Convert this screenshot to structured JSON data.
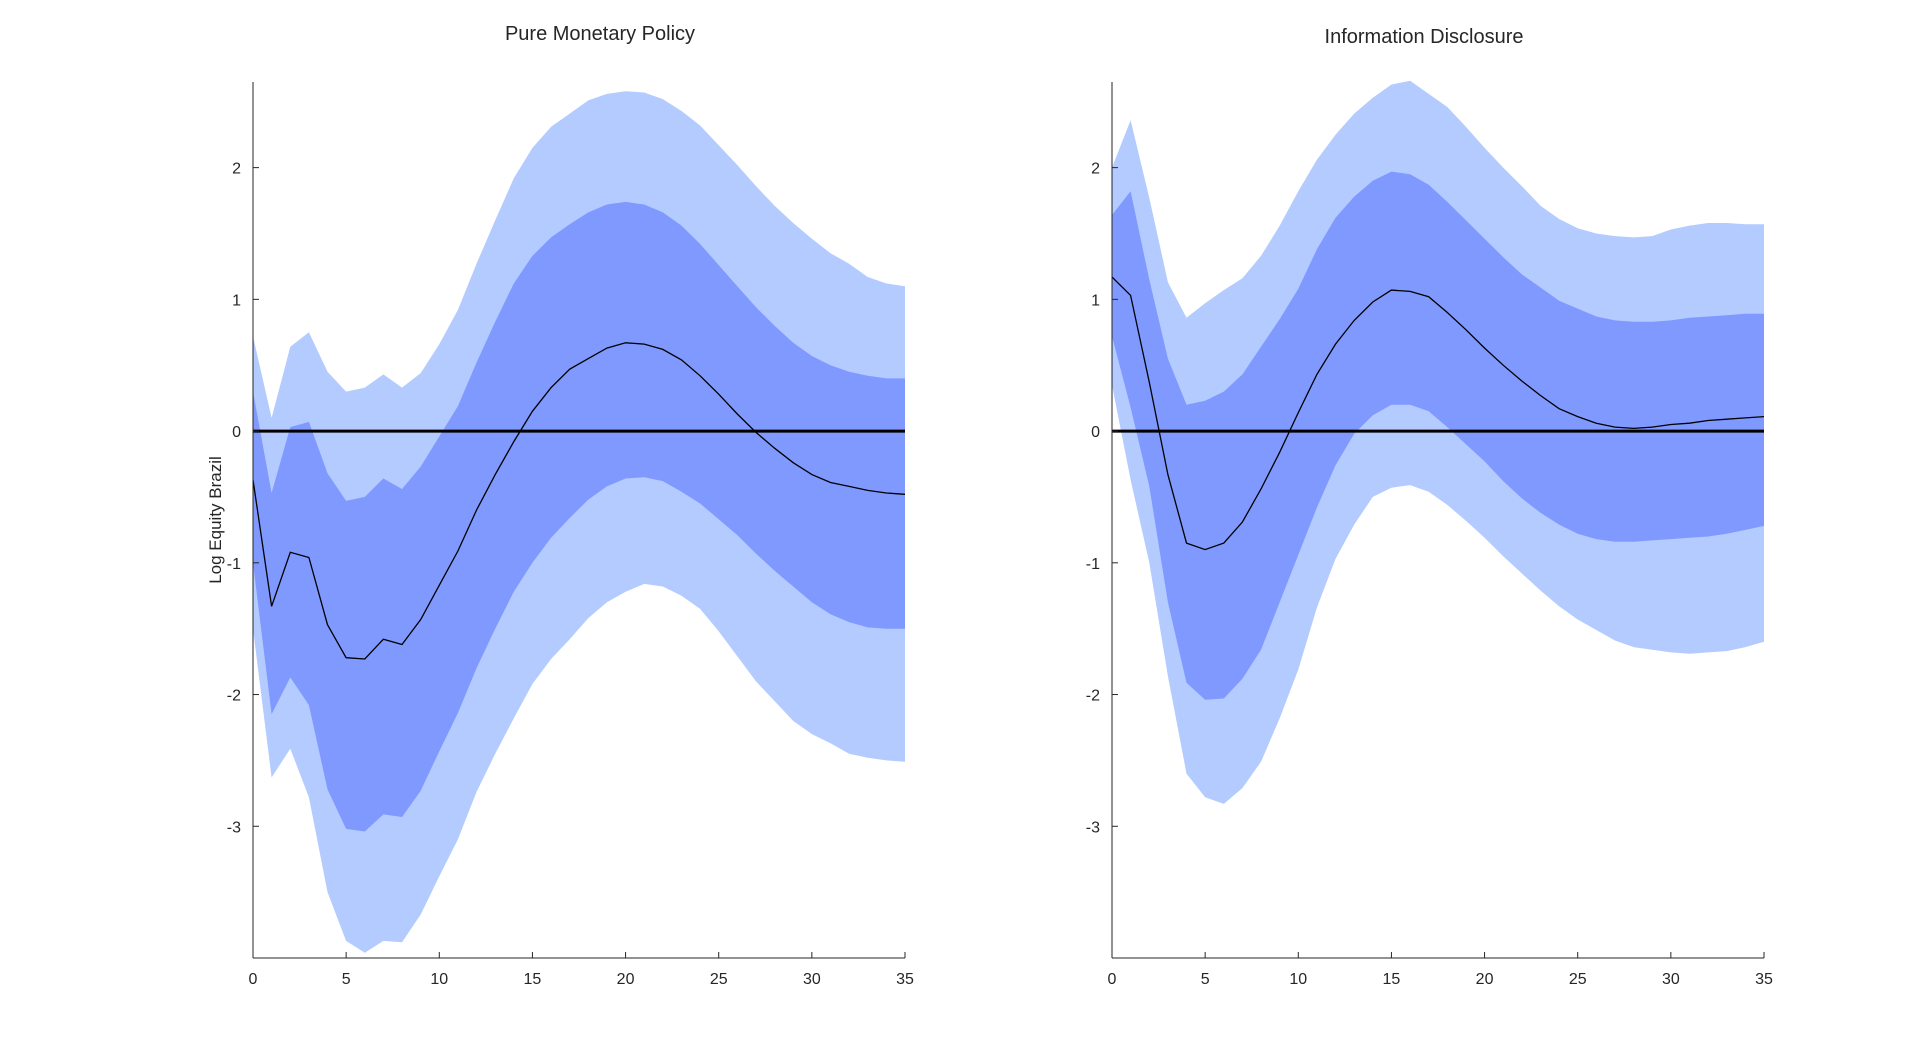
{
  "chart_data": [
    {
      "type": "line",
      "title": "Pure Monetary Policy",
      "ylabel": "Log Equity Brazil",
      "xlabel": "",
      "xlim": [
        0,
        35
      ],
      "ylim": [
        -4,
        2.65
      ],
      "xticks": [
        0,
        5,
        10,
        15,
        20,
        25,
        30,
        35
      ],
      "yticks": [
        -3,
        -2,
        -1,
        0,
        1,
        2
      ],
      "legend": "none",
      "grid": false,
      "colors": {
        "outer_band": "#b3cbff",
        "inner_band": "#8099ff",
        "median": "#000000",
        "zero_line": "#000000"
      },
      "x": [
        0,
        1,
        2,
        3,
        4,
        5,
        6,
        7,
        8,
        9,
        10,
        11,
        12,
        13,
        14,
        15,
        16,
        17,
        18,
        19,
        20,
        21,
        22,
        23,
        24,
        25,
        26,
        27,
        28,
        29,
        30,
        31,
        32,
        33,
        34,
        35
      ],
      "series": [
        {
          "name": "median",
          "values": [
            -0.37,
            -1.33,
            -0.92,
            -0.96,
            -1.47,
            -1.72,
            -1.73,
            -1.58,
            -1.62,
            -1.43,
            -1.17,
            -0.91,
            -0.6,
            -0.33,
            -0.08,
            0.15,
            0.33,
            0.47,
            0.55,
            0.63,
            0.67,
            0.66,
            0.62,
            0.54,
            0.42,
            0.28,
            0.13,
            -0.01,
            -0.13,
            -0.24,
            -0.33,
            -0.39,
            -0.42,
            -0.45,
            -0.47,
            -0.48
          ]
        },
        {
          "name": "inner_upper",
          "values": [
            0.3,
            -0.47,
            0.03,
            0.07,
            -0.32,
            -0.53,
            -0.5,
            -0.36,
            -0.44,
            -0.27,
            -0.04,
            0.19,
            0.52,
            0.83,
            1.12,
            1.33,
            1.47,
            1.57,
            1.66,
            1.72,
            1.74,
            1.72,
            1.66,
            1.56,
            1.42,
            1.26,
            1.1,
            0.94,
            0.8,
            0.67,
            0.57,
            0.5,
            0.45,
            0.42,
            0.4,
            0.4
          ]
        },
        {
          "name": "inner_lower",
          "values": [
            -1.0,
            -2.15,
            -1.87,
            -2.08,
            -2.72,
            -3.02,
            -3.04,
            -2.91,
            -2.93,
            -2.73,
            -2.43,
            -2.14,
            -1.8,
            -1.5,
            -1.22,
            -1.0,
            -0.81,
            -0.66,
            -0.52,
            -0.42,
            -0.36,
            -0.35,
            -0.38,
            -0.46,
            -0.55,
            -0.67,
            -0.79,
            -0.93,
            -1.06,
            -1.18,
            -1.3,
            -1.39,
            -1.45,
            -1.49,
            -1.5,
            -1.5
          ]
        },
        {
          "name": "outer_upper",
          "values": [
            0.72,
            0.1,
            0.64,
            0.75,
            0.45,
            0.3,
            0.33,
            0.43,
            0.33,
            0.44,
            0.66,
            0.92,
            1.27,
            1.6,
            1.92,
            2.15,
            2.31,
            2.41,
            2.51,
            2.56,
            2.58,
            2.57,
            2.52,
            2.43,
            2.32,
            2.17,
            2.02,
            1.86,
            1.71,
            1.58,
            1.46,
            1.35,
            1.27,
            1.17,
            1.12,
            1.1
          ]
        },
        {
          "name": "outer_lower",
          "values": [
            -1.5,
            -2.63,
            -2.41,
            -2.78,
            -3.5,
            -3.87,
            -3.96,
            -3.87,
            -3.88,
            -3.67,
            -3.38,
            -3.1,
            -2.74,
            -2.45,
            -2.18,
            -1.92,
            -1.73,
            -1.58,
            -1.42,
            -1.3,
            -1.22,
            -1.16,
            -1.18,
            -1.25,
            -1.35,
            -1.52,
            -1.71,
            -1.9,
            -2.05,
            -2.2,
            -2.3,
            -2.37,
            -2.45,
            -2.48,
            -2.5,
            -2.51
          ]
        }
      ]
    },
    {
      "type": "line",
      "title": "Information Disclosure",
      "ylabel": "",
      "xlabel": "",
      "xlim": [
        0,
        35
      ],
      "ylim": [
        -4,
        2.65
      ],
      "xticks": [
        0,
        5,
        10,
        15,
        20,
        25,
        30,
        35
      ],
      "yticks": [
        -3,
        -2,
        -1,
        0,
        1,
        2
      ],
      "legend": "none",
      "grid": false,
      "colors": {
        "outer_band": "#b3cbff",
        "inner_band": "#8099ff",
        "median": "#000000",
        "zero_line": "#000000"
      },
      "x": [
        0,
        1,
        2,
        3,
        4,
        5,
        6,
        7,
        8,
        9,
        10,
        11,
        12,
        13,
        14,
        15,
        16,
        17,
        18,
        19,
        20,
        21,
        22,
        23,
        24,
        25,
        26,
        27,
        28,
        29,
        30,
        31,
        32,
        33,
        34,
        35
      ],
      "series": [
        {
          "name": "median",
          "values": [
            1.17,
            1.03,
            0.37,
            -0.33,
            -0.85,
            -0.9,
            -0.85,
            -0.69,
            -0.44,
            -0.16,
            0.14,
            0.43,
            0.66,
            0.84,
            0.98,
            1.07,
            1.06,
            1.02,
            0.9,
            0.77,
            0.63,
            0.5,
            0.38,
            0.27,
            0.17,
            0.11,
            0.06,
            0.03,
            0.02,
            0.03,
            0.05,
            0.06,
            0.08,
            0.09,
            0.1,
            0.11
          ]
        },
        {
          "name": "inner_upper",
          "values": [
            1.64,
            1.82,
            1.15,
            0.55,
            0.2,
            0.23,
            0.3,
            0.43,
            0.64,
            0.85,
            1.08,
            1.38,
            1.62,
            1.78,
            1.9,
            1.97,
            1.95,
            1.87,
            1.74,
            1.6,
            1.46,
            1.32,
            1.19,
            1.09,
            0.99,
            0.93,
            0.87,
            0.84,
            0.83,
            0.83,
            0.84,
            0.86,
            0.87,
            0.88,
            0.89,
            0.89
          ]
        },
        {
          "name": "inner_lower",
          "values": [
            0.72,
            0.18,
            -0.42,
            -1.3,
            -1.91,
            -2.04,
            -2.03,
            -1.88,
            -1.66,
            -1.3,
            -0.94,
            -0.58,
            -0.26,
            -0.02,
            0.12,
            0.2,
            0.2,
            0.15,
            0.03,
            -0.1,
            -0.23,
            -0.38,
            -0.51,
            -0.62,
            -0.71,
            -0.78,
            -0.82,
            -0.84,
            -0.84,
            -0.83,
            -0.82,
            -0.81,
            -0.8,
            -0.78,
            -0.75,
            -0.72
          ]
        },
        {
          "name": "outer_upper",
          "values": [
            2.0,
            2.36,
            1.77,
            1.13,
            0.86,
            0.97,
            1.07,
            1.16,
            1.33,
            1.56,
            1.82,
            2.06,
            2.25,
            2.41,
            2.53,
            2.63,
            2.66,
            2.56,
            2.46,
            2.31,
            2.15,
            2.0,
            1.86,
            1.71,
            1.61,
            1.54,
            1.5,
            1.48,
            1.47,
            1.48,
            1.53,
            1.56,
            1.58,
            1.58,
            1.57,
            1.57
          ]
        },
        {
          "name": "outer_lower",
          "values": [
            0.35,
            -0.37,
            -1.0,
            -1.86,
            -2.6,
            -2.78,
            -2.83,
            -2.71,
            -2.51,
            -2.18,
            -1.81,
            -1.34,
            -0.97,
            -0.71,
            -0.5,
            -0.43,
            -0.41,
            -0.46,
            -0.56,
            -0.68,
            -0.81,
            -0.95,
            -1.08,
            -1.21,
            -1.33,
            -1.43,
            -1.51,
            -1.59,
            -1.64,
            -1.66,
            -1.68,
            -1.69,
            -1.68,
            -1.67,
            -1.64,
            -1.6
          ]
        }
      ]
    }
  ]
}
